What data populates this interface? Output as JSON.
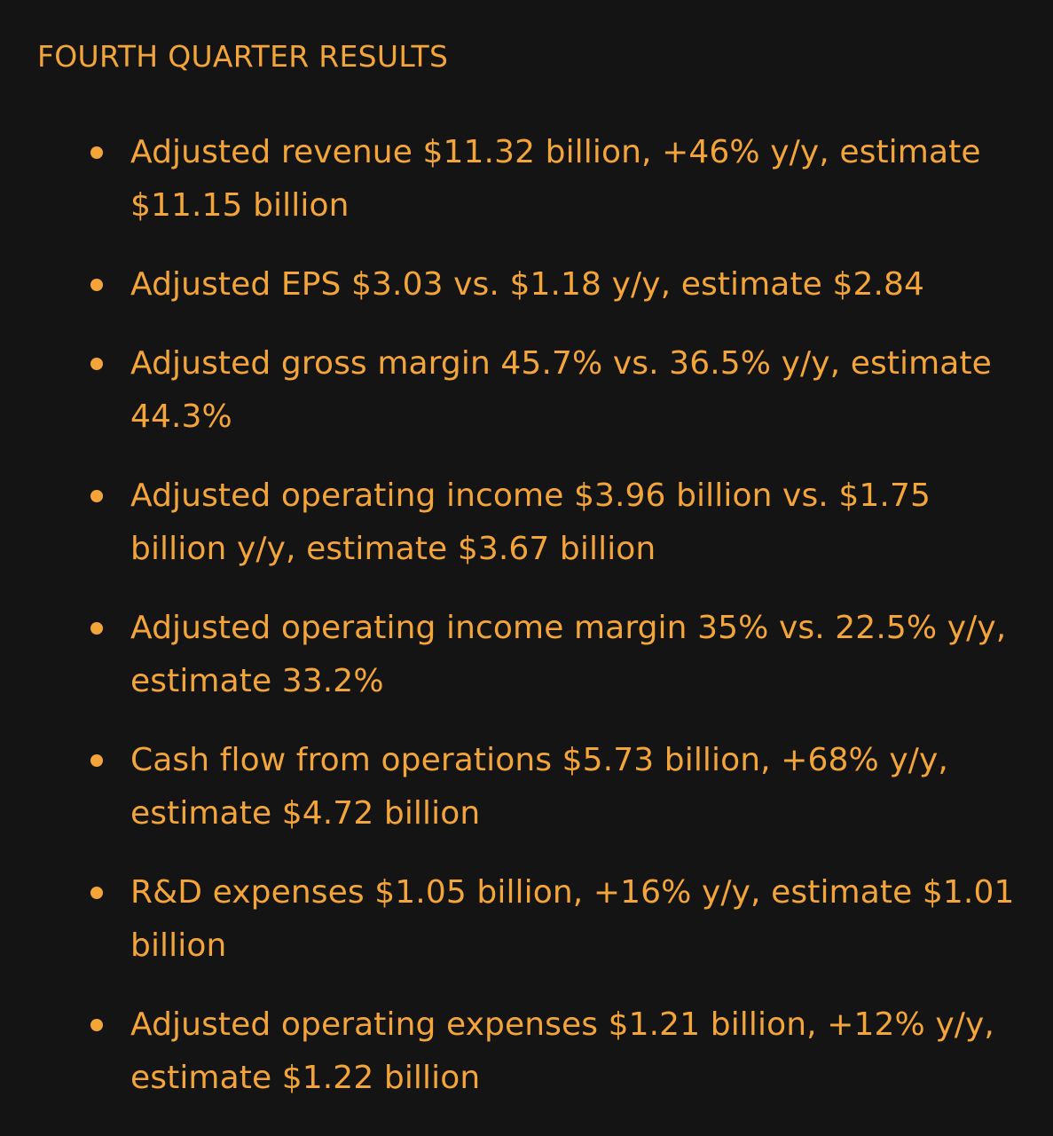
{
  "section_title": "FOURTH QUARTER RESULTS",
  "items": [
    "Adjusted revenue $11.32 billion, +46% y/y, estimate $11.15 billion",
    "Adjusted EPS $3.03 vs. $1.18 y/y, estimate $2.84",
    "Adjusted gross margin 45.7% vs. 36.5% y/y, estimate 44.3%",
    "Adjusted operating income $3.96 billion vs. $1.75 billion y/y, estimate $3.67 billion",
    "Adjusted operating income margin 35% vs. 22.5% y/y, estimate 33.2%",
    "Cash flow from operations $5.73 billion, +68% y/y, estimate $4.72 billion",
    "R&D expenses $1.05 billion, +16% y/y, estimate $1.01 billion",
    "Adjusted operating expenses $1.21 billion, +12% y/y, estimate $1.22 billion"
  ],
  "colors": {
    "background": "#141414",
    "text": "#f4a53a"
  }
}
